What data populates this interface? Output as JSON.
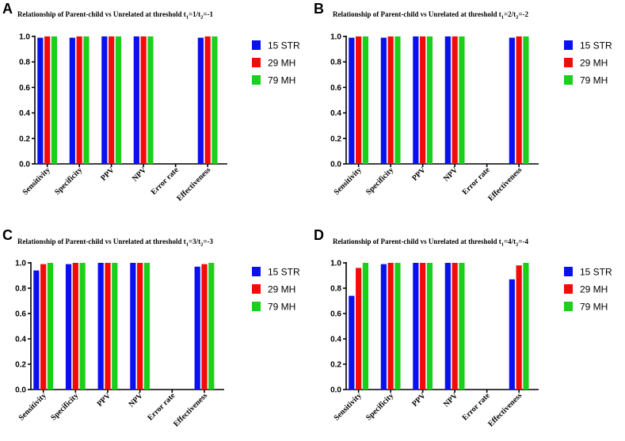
{
  "series_colors": [
    "#0a10f0",
    "#f50a0a",
    "#1ad01a"
  ],
  "chart_data": [
    {
      "type": "bar",
      "panel": "A",
      "title_prefix": "Relationship of Parent-child vs Unrelated at threshold t",
      "title_sub1": "1",
      "title_mid": "=1/t",
      "title_sub2": "2",
      "title_suffix": "=-1",
      "categories": [
        "Sensitivity",
        "Specificity",
        "PPV",
        "NPV",
        "Error rate",
        "Effectiveness"
      ],
      "ylim": [
        0,
        1.0
      ],
      "yticks": [
        "0.0",
        "0.2",
        "0.4",
        "0.6",
        "0.8",
        "1.0"
      ],
      "series": [
        {
          "name": "15 STR",
          "values": [
            0.99,
            0.99,
            1.0,
            1.0,
            0.0,
            0.99
          ]
        },
        {
          "name": "29 MH",
          "values": [
            1.0,
            1.0,
            1.0,
            1.0,
            0.0,
            1.0
          ]
        },
        {
          "name": "79 MH",
          "values": [
            1.0,
            1.0,
            1.0,
            1.0,
            0.0,
            1.0
          ]
        }
      ]
    },
    {
      "type": "bar",
      "panel": "B",
      "title_prefix": "Relationship of Parent-child vs Unrelated at threshold t",
      "title_sub1": "1",
      "title_mid": "=2/t",
      "title_sub2": "2",
      "title_suffix": "=-2",
      "categories": [
        "Sensitivity",
        "Specificity",
        "PPV",
        "NPV",
        "Error rate",
        "Effectiveness"
      ],
      "ylim": [
        0,
        1.0
      ],
      "yticks": [
        "0.0",
        "0.2",
        "0.4",
        "0.6",
        "0.8",
        "1.0"
      ],
      "series": [
        {
          "name": "15 STR",
          "values": [
            0.99,
            0.99,
            1.0,
            1.0,
            0.0,
            0.99
          ]
        },
        {
          "name": "29 MH",
          "values": [
            1.0,
            1.0,
            1.0,
            1.0,
            0.0,
            1.0
          ]
        },
        {
          "name": "79 MH",
          "values": [
            1.0,
            1.0,
            1.0,
            1.0,
            0.0,
            1.0
          ]
        }
      ]
    },
    {
      "type": "bar",
      "panel": "C",
      "title_prefix": "Relationship of Parent-child vs Unrelated at threshold t",
      "title_sub1": "1",
      "title_mid": "=3/t",
      "title_sub2": "2",
      "title_suffix": "=-3",
      "categories": [
        "Sensitivity",
        "Specificity",
        "PPV",
        "NPV",
        "Error rate",
        "Effectiveness"
      ],
      "ylim": [
        0,
        1.0
      ],
      "yticks": [
        "0.0",
        "0.2",
        "0.4",
        "0.6",
        "0.8",
        "1.0"
      ],
      "series": [
        {
          "name": "15 STR",
          "values": [
            0.94,
            0.99,
            1.0,
            1.0,
            0.0,
            0.97
          ]
        },
        {
          "name": "29 MH",
          "values": [
            0.99,
            1.0,
            1.0,
            1.0,
            0.0,
            0.99
          ]
        },
        {
          "name": "79 MH",
          "values": [
            1.0,
            1.0,
            1.0,
            1.0,
            0.0,
            1.0
          ]
        }
      ]
    },
    {
      "type": "bar",
      "panel": "D",
      "title_prefix": "Relationship of Parent-child vs Unrelated at threshold t",
      "title_sub1": "1",
      "title_mid": "=4/t",
      "title_sub2": "2",
      "title_suffix": "=-4",
      "categories": [
        "Sensitivity",
        "Specificity",
        "PPV",
        "NPV",
        "Error rate",
        "Effectiveness"
      ],
      "ylim": [
        0,
        1.0
      ],
      "yticks": [
        "0.0",
        "0.2",
        "0.4",
        "0.6",
        "0.8",
        "1.0"
      ],
      "series": [
        {
          "name": "15 STR",
          "values": [
            0.74,
            0.99,
            1.0,
            1.0,
            0.0,
            0.87
          ]
        },
        {
          "name": "29 MH",
          "values": [
            0.96,
            1.0,
            1.0,
            1.0,
            0.0,
            0.98
          ]
        },
        {
          "name": "79 MH",
          "values": [
            1.0,
            1.0,
            1.0,
            1.0,
            0.0,
            1.0
          ]
        }
      ]
    }
  ]
}
